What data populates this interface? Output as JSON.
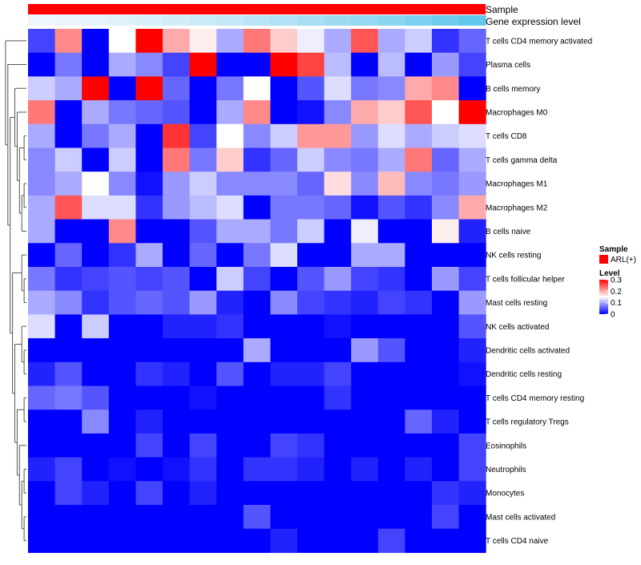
{
  "chart_data": {
    "type": "heatmap",
    "annotations": [
      {
        "label": "Sample",
        "color": "#ff0000"
      },
      {
        "label": "Gene expression level",
        "gradient": [
          "#f2f7fb",
          "#56c3ec"
        ]
      }
    ],
    "rows": [
      "T cells CD4 memory activated",
      "Plasma cells",
      "B cells memory",
      "Macrophages M0",
      "T cells CD8",
      "T cells gamma delta",
      "Macrophages M1",
      "Macrophages M2",
      "B cells naive",
      "NK cells resting",
      "T cells follicular helper",
      "Mast cells resting",
      "NK cells activated",
      "Dendritic cells activated",
      "Dendritic cells resting",
      "T cells CD4 memory resting",
      "T cells regulatory  Tregs",
      "Eosinophils",
      "Neutrophils",
      "Monocytes",
      "Mast cells activated",
      "T cells CD4 naive"
    ],
    "values": [
      [
        0.04,
        0.22,
        0.0,
        0.15,
        0.3,
        0.2,
        0.16,
        0.1,
        0.23,
        0.18,
        0.14,
        0.1,
        0.25,
        0.1,
        0.12,
        0.03,
        0.06
      ],
      [
        0.0,
        0.07,
        0.0,
        0.1,
        0.08,
        0.04,
        0.3,
        0.0,
        0.0,
        0.3,
        0.26,
        0.11,
        0.0,
        0.11,
        0.0,
        0.09,
        0.04
      ],
      [
        0.12,
        0.1,
        0.3,
        0.0,
        0.3,
        0.06,
        0.0,
        0.07,
        0.15,
        0.0,
        0.05,
        0.13,
        0.07,
        0.08,
        0.2,
        0.22,
        0.0
      ],
      [
        0.23,
        0.0,
        0.1,
        0.07,
        0.06,
        0.05,
        0.0,
        0.1,
        0.22,
        0.0,
        0.01,
        0.08,
        0.2,
        0.18,
        0.25,
        0.15,
        0.3
      ],
      [
        0.1,
        0.0,
        0.07,
        0.1,
        0.0,
        0.27,
        0.04,
        0.15,
        0.08,
        0.12,
        0.21,
        0.21,
        0.09,
        0.13,
        0.1,
        0.12,
        0.13
      ],
      [
        0.08,
        0.12,
        0.0,
        0.12,
        0.0,
        0.23,
        0.07,
        0.18,
        0.03,
        0.06,
        0.12,
        0.08,
        0.07,
        0.1,
        0.23,
        0.06,
        0.1
      ],
      [
        0.08,
        0.1,
        0.15,
        0.08,
        0.01,
        0.09,
        0.12,
        0.08,
        0.08,
        0.08,
        0.06,
        0.17,
        0.08,
        0.19,
        0.08,
        0.07,
        0.09
      ],
      [
        0.1,
        0.25,
        0.13,
        0.13,
        0.03,
        0.09,
        0.11,
        0.13,
        0.0,
        0.07,
        0.07,
        0.06,
        0.01,
        0.05,
        0.03,
        0.08,
        0.2
      ],
      [
        0.1,
        0.0,
        0.0,
        0.22,
        0.0,
        0.0,
        0.05,
        0.1,
        0.1,
        0.07,
        0.12,
        0.0,
        0.14,
        0.0,
        0.0,
        0.16,
        0.02
      ],
      [
        0.0,
        0.06,
        0.0,
        0.03,
        0.1,
        0.0,
        0.06,
        0.0,
        0.07,
        0.13,
        0.0,
        0.0,
        0.1,
        0.1,
        0.0,
        0.0,
        0.0
      ],
      [
        0.07,
        0.03,
        0.04,
        0.05,
        0.04,
        0.05,
        0.0,
        0.12,
        0.04,
        0.0,
        0.05,
        0.09,
        0.04,
        0.03,
        0.0,
        0.09,
        0.04
      ],
      [
        0.1,
        0.08,
        0.03,
        0.05,
        0.06,
        0.05,
        0.09,
        0.02,
        0.0,
        0.08,
        0.04,
        0.03,
        0.02,
        0.04,
        0.03,
        0.0,
        0.09
      ],
      [
        0.13,
        0.0,
        0.12,
        0.0,
        0.0,
        0.02,
        0.02,
        0.03,
        0.0,
        0.0,
        0.0,
        0.01,
        0.0,
        0.0,
        0.0,
        0.0,
        0.05
      ],
      [
        0.0,
        0.0,
        0.0,
        0.0,
        0.0,
        0.0,
        0.0,
        0.0,
        0.1,
        0.0,
        0.0,
        0.0,
        0.09,
        0.05,
        0.0,
        0.0,
        0.02
      ],
      [
        0.02,
        0.05,
        0.0,
        0.0,
        0.03,
        0.02,
        0.0,
        0.05,
        0.0,
        0.02,
        0.02,
        0.04,
        0.0,
        0.0,
        0.0,
        0.0,
        0.01
      ],
      [
        0.06,
        0.07,
        0.05,
        0.0,
        0.0,
        0.0,
        0.01,
        0.0,
        0.0,
        0.0,
        0.0,
        0.03,
        0.0,
        0.0,
        0.0,
        0.0,
        0.0
      ],
      [
        0.0,
        0.0,
        0.08,
        0.0,
        0.02,
        0.0,
        0.0,
        0.0,
        0.0,
        0.0,
        0.0,
        0.0,
        0.0,
        0.0,
        0.06,
        0.02,
        0.0
      ],
      [
        0.0,
        0.0,
        0.0,
        0.0,
        0.04,
        0.0,
        0.04,
        0.0,
        0.0,
        0.04,
        0.03,
        0.0,
        0.0,
        0.0,
        0.0,
        0.0,
        0.04
      ],
      [
        0.02,
        0.04,
        0.0,
        0.01,
        0.0,
        0.01,
        0.03,
        0.0,
        0.03,
        0.03,
        0.02,
        0.0,
        0.02,
        0.0,
        0.02,
        0.0,
        0.04
      ],
      [
        0.0,
        0.04,
        0.02,
        0.0,
        0.04,
        0.0,
        0.02,
        0.0,
        0.0,
        0.0,
        0.0,
        0.0,
        0.0,
        0.0,
        0.0,
        0.03,
        0.02
      ],
      [
        0.0,
        0.0,
        0.0,
        0.0,
        0.0,
        0.0,
        0.0,
        0.0,
        0.05,
        0.0,
        0.0,
        0.0,
        0.0,
        0.0,
        0.0,
        0.04,
        0.0
      ],
      [
        0.0,
        0.0,
        0.0,
        0.0,
        0.0,
        0.0,
        0.0,
        0.0,
        0.0,
        0.02,
        0.0,
        0.0,
        0.0,
        0.04,
        0.0,
        0.0,
        0.0
      ]
    ],
    "expression_levels": [
      0.02,
      0.05,
      0.08,
      0.12,
      0.16,
      0.2,
      0.25,
      0.3,
      0.36,
      0.42,
      0.48,
      0.54,
      0.6,
      0.68,
      0.76,
      0.84,
      0.92
    ],
    "legend": {
      "sample_title": "Sample",
      "sample_label": "ARL(+)",
      "level_title": "Level",
      "level_ticks": [
        0.3,
        0.2,
        0.1,
        0
      ],
      "level_range": [
        0,
        0.3
      ]
    },
    "colors": {
      "low": "#0000ff",
      "mid": "#ffffff",
      "high": "#ff0000",
      "sample": "#ff0000",
      "dendrogram": "#555555"
    }
  }
}
